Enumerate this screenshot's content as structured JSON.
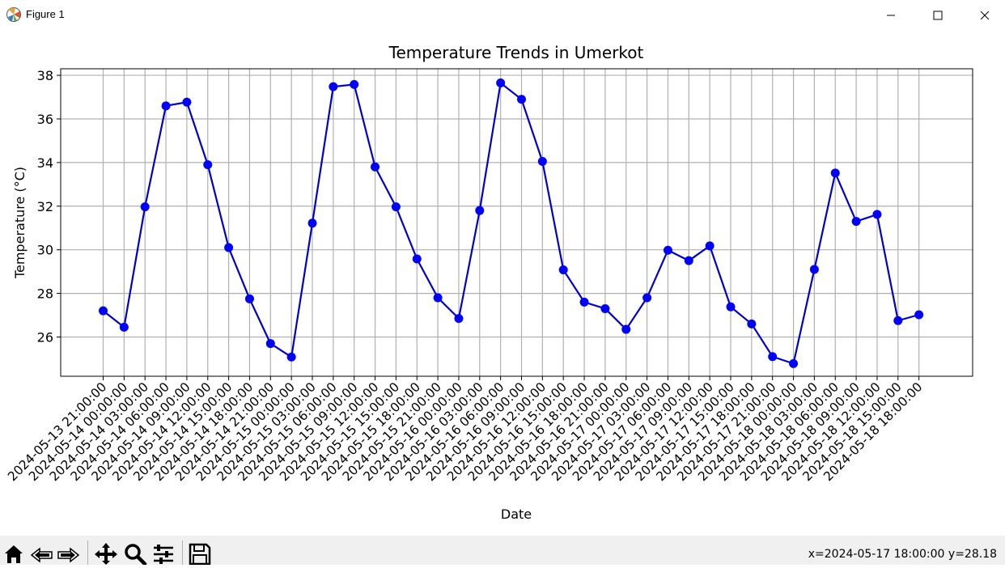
{
  "window": {
    "title": "Figure 1",
    "icons": {
      "app": "matplotlib-logo-icon",
      "minimize": "minimize-icon",
      "maximize": "maximize-icon",
      "close": "close-icon"
    }
  },
  "toolbar": {
    "buttons": [
      {
        "name": "home-icon"
      },
      {
        "name": "back-arrow-icon"
      },
      {
        "name": "forward-arrow-icon"
      },
      {
        "name": "pan-icon"
      },
      {
        "name": "zoom-icon"
      },
      {
        "name": "configure-subplots-icon"
      },
      {
        "name": "save-icon"
      }
    ],
    "coords": "x=2024-05-17 18:00:00 y=28.18"
  },
  "chart_data": {
    "type": "line",
    "title": "Temperature Trends in Umerkot",
    "xlabel": "Date",
    "ylabel": "Temperature (°C)",
    "ylim": [
      24.2,
      38.3
    ],
    "yticks": [
      26,
      28,
      30,
      32,
      34,
      36,
      38
    ],
    "grid": true,
    "line_color": "#0000cd",
    "marker_color": "#0000ff",
    "categories": [
      "2024-05-13 21:00:00",
      "2024-05-14 00:00:00",
      "2024-05-14 03:00:00",
      "2024-05-14 06:00:00",
      "2024-05-14 09:00:00",
      "2024-05-14 12:00:00",
      "2024-05-14 15:00:00",
      "2024-05-14 18:00:00",
      "2024-05-14 21:00:00",
      "2024-05-15 00:00:00",
      "2024-05-15 03:00:00",
      "2024-05-15 06:00:00",
      "2024-05-15 09:00:00",
      "2024-05-15 12:00:00",
      "2024-05-15 15:00:00",
      "2024-05-15 18:00:00",
      "2024-05-15 21:00:00",
      "2024-05-16 00:00:00",
      "2024-05-16 03:00:00",
      "2024-05-16 06:00:00",
      "2024-05-16 09:00:00",
      "2024-05-16 12:00:00",
      "2024-05-16 15:00:00",
      "2024-05-16 18:00:00",
      "2024-05-16 21:00:00",
      "2024-05-17 00:00:00",
      "2024-05-17 03:00:00",
      "2024-05-17 06:00:00",
      "2024-05-17 09:00:00",
      "2024-05-17 12:00:00",
      "2024-05-17 15:00:00",
      "2024-05-17 18:00:00",
      "2024-05-17 21:00:00",
      "2024-05-18 00:00:00",
      "2024-05-18 03:00:00",
      "2024-05-18 06:00:00",
      "2024-05-18 09:00:00",
      "2024-05-18 12:00:00",
      "2024-05-18 15:00:00",
      "2024-05-18 18:00:00"
    ],
    "values": [
      27.2,
      26.45,
      31.97,
      36.6,
      36.77,
      33.9,
      30.1,
      27.75,
      25.7,
      25.08,
      31.22,
      37.48,
      37.58,
      33.8,
      31.97,
      29.58,
      27.8,
      26.85,
      31.8,
      37.65,
      36.9,
      34.05,
      29.08,
      27.6,
      27.3,
      26.35,
      27.8,
      29.98,
      29.5,
      30.18,
      27.38,
      26.6,
      25.1,
      24.78,
      29.1,
      33.52,
      31.3,
      31.62,
      26.75,
      27.02
    ]
  }
}
